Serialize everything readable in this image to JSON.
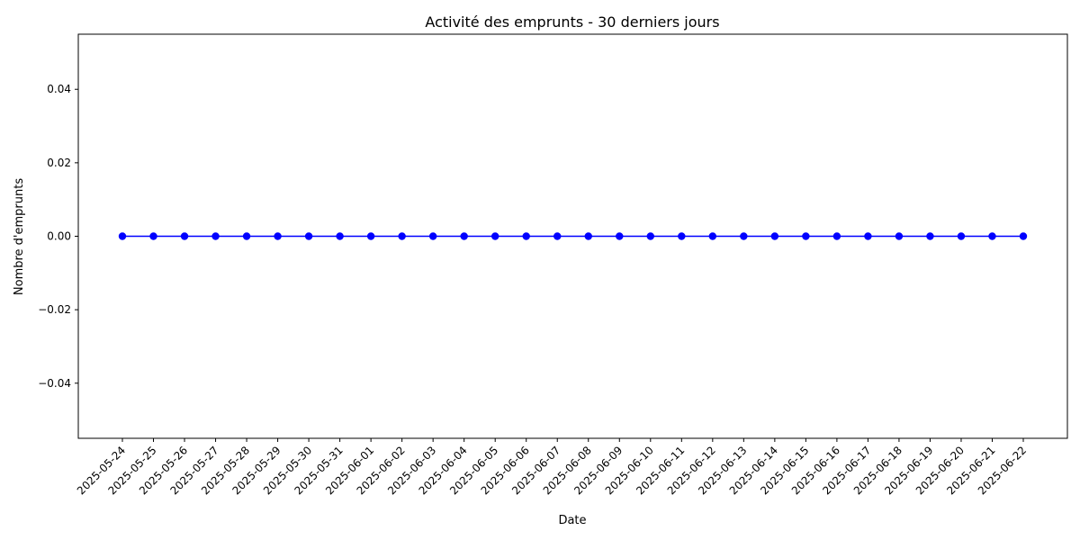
{
  "chart_data": {
    "type": "line",
    "title": "Activité des emprunts - 30 derniers jours",
    "xlabel": "Date",
    "ylabel": "Nombre d'emprunts",
    "x": [
      "2025-05-24",
      "2025-05-25",
      "2025-05-26",
      "2025-05-27",
      "2025-05-28",
      "2025-05-29",
      "2025-05-30",
      "2025-05-31",
      "2025-06-01",
      "2025-06-02",
      "2025-06-03",
      "2025-06-04",
      "2025-06-05",
      "2025-06-06",
      "2025-06-07",
      "2025-06-08",
      "2025-06-09",
      "2025-06-10",
      "2025-06-11",
      "2025-06-12",
      "2025-06-13",
      "2025-06-14",
      "2025-06-15",
      "2025-06-16",
      "2025-06-17",
      "2025-06-18",
      "2025-06-19",
      "2025-06-20",
      "2025-06-21",
      "2025-06-22"
    ],
    "series": [
      {
        "values": [
          0,
          0,
          0,
          0,
          0,
          0,
          0,
          0,
          0,
          0,
          0,
          0,
          0,
          0,
          0,
          0,
          0,
          0,
          0,
          0,
          0,
          0,
          0,
          0,
          0,
          0,
          0,
          0,
          0,
          0
        ],
        "color": "#0000ff",
        "marker": "circle"
      }
    ],
    "ylim": [
      -0.055,
      0.055
    ],
    "yticks": [
      -0.04,
      -0.02,
      0.0,
      0.02,
      0.04
    ],
    "ytick_labels": [
      "−0.04",
      "−0.02",
      "0.00",
      "0.02",
      "0.04"
    ],
    "grid": false,
    "legend": "none"
  }
}
